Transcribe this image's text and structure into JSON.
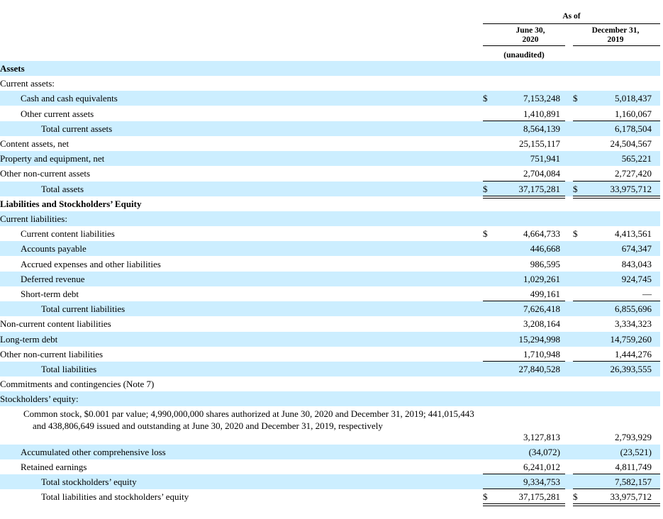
{
  "header": {
    "as_of": "As of",
    "col1_line1": "June 30,",
    "col1_line2": "2020",
    "col1_note": "(unaudited)",
    "col2_line1": "December 31,",
    "col2_line2": "2019"
  },
  "rows": [
    {
      "label": "Assets",
      "bold": true,
      "indent": 0,
      "band": true
    },
    {
      "label": "Current assets:",
      "indent": 0,
      "band": false
    },
    {
      "label": "Cash and cash equivalents",
      "indent": 1,
      "band": true,
      "ds1": "$",
      "v1": "7,153,248",
      "ds2": "$",
      "v2": "5,018,437"
    },
    {
      "label": "Other current assets",
      "indent": 1,
      "band": false,
      "v1": "1,410,891",
      "v2": "1,160,067"
    },
    {
      "label": "Total current assets",
      "indent": 2,
      "band": true,
      "v1": "8,564,139",
      "v2": "6,178,504"
    },
    {
      "label": "Content assets, net",
      "indent": 0,
      "band": false,
      "v1": "25,155,117",
      "v2": "24,504,567"
    },
    {
      "label": "Property and equipment, net",
      "indent": 0,
      "band": true,
      "v1": "751,941",
      "v2": "565,221"
    },
    {
      "label": "Other non-current assets",
      "indent": 0,
      "band": false,
      "v1": "2,704,084",
      "v2": "2,727,420"
    },
    {
      "label": "Total assets",
      "indent": 2,
      "band": true,
      "ds1": "$",
      "v1": "37,175,281",
      "ds2": "$",
      "v2": "33,975,712"
    },
    {
      "label": "Liabilities and Stockholders’ Equity",
      "bold": true,
      "indent": 0,
      "band": false
    },
    {
      "label": "Current liabilities:",
      "indent": 0,
      "band": true
    },
    {
      "label": "Current content liabilities",
      "indent": 1,
      "band": false,
      "ds1": "$",
      "v1": "4,664,733",
      "ds2": "$",
      "v2": "4,413,561"
    },
    {
      "label": "Accounts payable",
      "indent": 1,
      "band": true,
      "v1": "446,668",
      "v2": "674,347"
    },
    {
      "label": "Accrued expenses and other liabilities",
      "indent": 1,
      "band": false,
      "v1": "986,595",
      "v2": "843,043"
    },
    {
      "label": "Deferred revenue",
      "indent": 1,
      "band": true,
      "v1": "1,029,261",
      "v2": "924,745"
    },
    {
      "label": "Short-term debt",
      "indent": 1,
      "band": false,
      "v1": "499,161",
      "v2": "—"
    },
    {
      "label": "Total current liabilities",
      "indent": 2,
      "band": true,
      "v1": "7,626,418",
      "v2": "6,855,696"
    },
    {
      "label": "Non-current content liabilities",
      "indent": 0,
      "band": false,
      "v1": "3,208,164",
      "v2": "3,334,323"
    },
    {
      "label": "Long-term debt",
      "indent": 0,
      "band": true,
      "v1": "15,294,998",
      "v2": "14,759,260"
    },
    {
      "label": "Other non-current liabilities",
      "indent": 0,
      "band": false,
      "v1": "1,710,948",
      "v2": "1,444,276"
    },
    {
      "label": "Total liabilities",
      "indent": 2,
      "band": true,
      "v1": "27,840,528",
      "v2": "26,393,555"
    },
    {
      "label": "Commitments and contingencies (Note 7)",
      "indent": 0,
      "band": false
    },
    {
      "label": "Stockholders’ equity:",
      "indent": 0,
      "band": true
    }
  ],
  "common_stock": {
    "label": "Common stock, $0.001 par value; 4,990,000,000 shares authorized at June 30, 2020 and December 31, 2019; 441,015,443 and 438,806,649 issued and outstanding at June 30, 2020 and December 31, 2019, respectively",
    "v1": "3,127,813",
    "v2": "2,793,929"
  },
  "rows_after": [
    {
      "label": "Accumulated other comprehensive loss",
      "indent": 1,
      "band": true,
      "v1": "(34,072)",
      "v2": "(23,521)"
    },
    {
      "label": "Retained earnings",
      "indent": 1,
      "band": false,
      "v1": "6,241,012",
      "v2": "4,811,749"
    },
    {
      "label": "Total stockholders’ equity",
      "indent": 2,
      "band": true,
      "v1": "9,334,753",
      "v2": "7,582,157"
    },
    {
      "label": "Total liabilities and stockholders’ equity",
      "indent": 2,
      "band": false,
      "ds1": "$",
      "v1": "37,175,281",
      "ds2": "$",
      "v2": "33,975,712"
    }
  ]
}
